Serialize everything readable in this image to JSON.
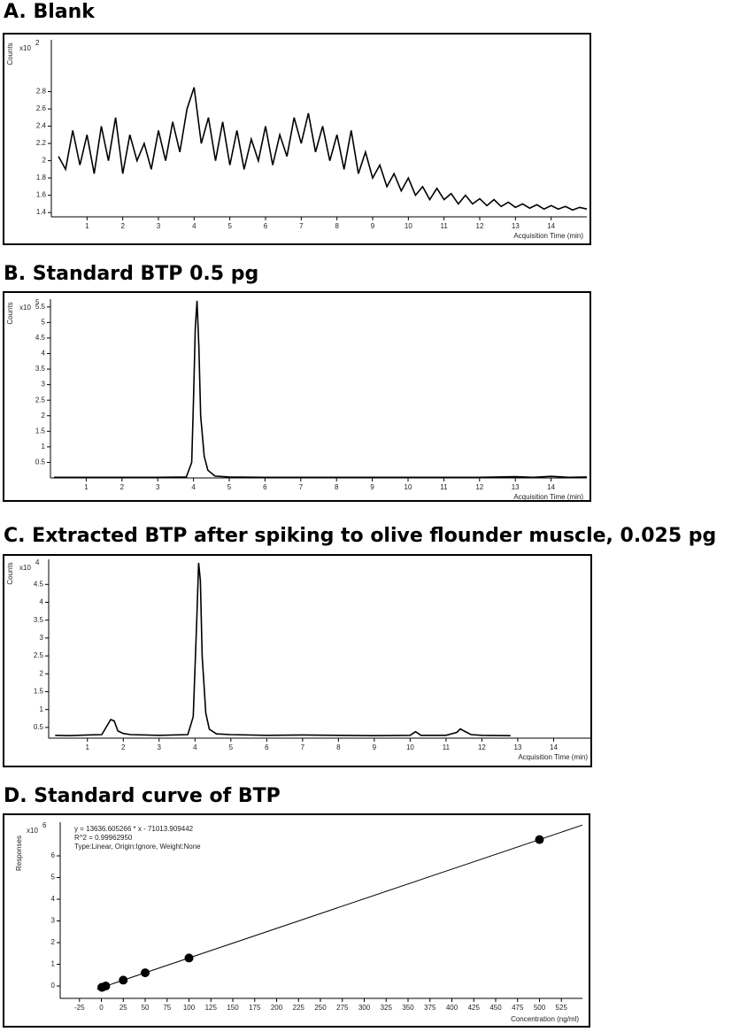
{
  "chart_data": [
    {
      "type": "line",
      "title": "A. Blank",
      "y_label": "Counts",
      "multiplier": "x10",
      "exponent": "2",
      "x_label": "Acquisition Time (min)",
      "color": "#000000",
      "xlim": [
        0,
        15
      ],
      "ylim": [
        1.35,
        3.4
      ],
      "xticks": [
        1,
        2,
        3,
        4,
        5,
        6,
        7,
        8,
        9,
        10,
        11,
        12,
        13,
        14
      ],
      "yticks": [
        1.4,
        1.6,
        1.8,
        2,
        2.2,
        2.4,
        2.6,
        2.8
      ],
      "x": [
        0.2,
        0.4,
        0.6,
        0.8,
        1.0,
        1.2,
        1.4,
        1.6,
        1.8,
        2.0,
        2.2,
        2.4,
        2.6,
        2.8,
        3.0,
        3.2,
        3.4,
        3.6,
        3.8,
        4.0,
        4.2,
        4.4,
        4.6,
        4.8,
        5.0,
        5.2,
        5.4,
        5.6,
        5.8,
        6.0,
        6.2,
        6.4,
        6.6,
        6.8,
        7.0,
        7.2,
        7.4,
        7.6,
        7.8,
        8.0,
        8.2,
        8.4,
        8.6,
        8.8,
        9.0,
        9.2,
        9.4,
        9.6,
        9.8,
        10.0,
        10.2,
        10.4,
        10.6,
        10.8,
        11.0,
        11.2,
        11.4,
        11.6,
        11.8,
        12.0,
        12.2,
        12.4,
        12.6,
        12.8,
        13.0,
        13.2,
        13.4,
        13.6,
        13.8,
        14.0,
        14.2,
        14.4,
        14.6,
        14.8,
        15.0
      ],
      "values": [
        2.05,
        1.9,
        2.35,
        1.95,
        2.3,
        1.85,
        2.4,
        2.0,
        2.5,
        1.85,
        2.3,
        2.0,
        2.2,
        1.9,
        2.35,
        2.0,
        2.45,
        2.1,
        2.6,
        2.85,
        2.2,
        2.5,
        2.0,
        2.45,
        1.95,
        2.35,
        1.9,
        2.25,
        2.0,
        2.4,
        1.95,
        2.3,
        2.05,
        2.5,
        2.2,
        2.55,
        2.1,
        2.4,
        2.0,
        2.3,
        1.9,
        2.35,
        1.85,
        2.1,
        1.8,
        1.95,
        1.7,
        1.85,
        1.65,
        1.8,
        1.6,
        1.7,
        1.55,
        1.68,
        1.55,
        1.62,
        1.5,
        1.6,
        1.5,
        1.56,
        1.48,
        1.55,
        1.47,
        1.52,
        1.46,
        1.5,
        1.45,
        1.49,
        1.44,
        1.48,
        1.44,
        1.47,
        1.43,
        1.46,
        1.44
      ]
    },
    {
      "type": "line",
      "title": "B. Standard BTP 0.5 pg",
      "y_label": "Counts",
      "multiplier": "x10",
      "exponent": "5",
      "x_label": "Acquisition Time (min)",
      "color": "#000000",
      "xlim": [
        0,
        15
      ],
      "ylim": [
        0,
        5.75
      ],
      "xticks": [
        1,
        2,
        3,
        4,
        5,
        6,
        7,
        8,
        9,
        10,
        11,
        12,
        13,
        14
      ],
      "yticks": [
        0.5,
        1,
        1.5,
        2,
        2.5,
        3,
        3.5,
        4,
        4.5,
        5,
        5.5
      ],
      "x": [
        0.1,
        1,
        2,
        3,
        3.8,
        3.95,
        4.0,
        4.05,
        4.1,
        4.15,
        4.2,
        4.3,
        4.4,
        4.6,
        5,
        6,
        8,
        10,
        12,
        13,
        13.5,
        14,
        14.5,
        15
      ],
      "values": [
        0.02,
        0.02,
        0.02,
        0.02,
        0.03,
        0.5,
        2.5,
        4.8,
        5.7,
        4.2,
        2.0,
        0.7,
        0.25,
        0.06,
        0.03,
        0.02,
        0.02,
        0.02,
        0.02,
        0.04,
        0.02,
        0.05,
        0.02,
        0.03
      ]
    },
    {
      "type": "line",
      "title": "C. Extracted BTP after spiking to olive flounder muscle, 0.025 pg",
      "y_label": "Counts",
      "multiplier": "x10",
      "exponent": "4",
      "x_label": "Acquisition Time (min)",
      "color": "#000000",
      "xlim": [
        -0.08,
        15.05
      ],
      "ylim": [
        0.2,
        5.2
      ],
      "xticks": [
        1,
        2,
        3,
        4,
        5,
        6,
        7,
        8,
        9,
        10,
        11,
        12,
        13,
        14
      ],
      "yticks": [
        0.5,
        1,
        1.5,
        2,
        2.5,
        3,
        3.5,
        4,
        4.5
      ],
      "x": [
        0.1,
        0.5,
        1.0,
        1.4,
        1.55,
        1.65,
        1.75,
        1.85,
        2.0,
        2.2,
        3.0,
        3.8,
        3.95,
        4.05,
        4.1,
        4.15,
        4.2,
        4.3,
        4.4,
        4.6,
        5.0,
        6,
        7,
        8,
        9,
        10.0,
        10.15,
        10.3,
        11.0,
        11.3,
        11.4,
        11.5,
        11.7,
        12,
        12.8
      ],
      "values": [
        0.28,
        0.27,
        0.29,
        0.3,
        0.55,
        0.72,
        0.68,
        0.4,
        0.33,
        0.3,
        0.28,
        0.3,
        0.8,
        3.5,
        5.1,
        4.6,
        2.5,
        0.9,
        0.45,
        0.32,
        0.3,
        0.28,
        0.29,
        0.28,
        0.27,
        0.28,
        0.38,
        0.28,
        0.28,
        0.36,
        0.46,
        0.4,
        0.3,
        0.28,
        0.27
      ]
    },
    {
      "type": "scatter",
      "title": "D. Standard curve of BTP",
      "y_label": "Responses",
      "multiplier": "x10",
      "exponent": "6",
      "x_label": "Concentration (ng/ml)",
      "color": "#000000",
      "annotations": [
        "y = 13636.605266 * x - 71013.909442",
        "R^2 = 0.99962950",
        "Type:Linear, Origin:Ignore, Weight:None"
      ],
      "xlim": [
        -47,
        549
      ],
      "ylim": [
        -0.57,
        7.55
      ],
      "xticks": [
        -25,
        0,
        25,
        50,
        75,
        100,
        125,
        150,
        175,
        200,
        225,
        250,
        275,
        300,
        325,
        350,
        375,
        400,
        425,
        450,
        475,
        500,
        525
      ],
      "yticks": [
        0,
        1,
        2,
        3,
        4,
        5,
        6
      ],
      "x": [
        0.5,
        1,
        5,
        25,
        50,
        100,
        500
      ],
      "values": [
        -0.06,
        -0.06,
        0,
        0.27,
        0.61,
        1.29,
        6.75
      ],
      "fit_line": {
        "x": [
          -5,
          549
        ],
        "y": [
          -0.14,
          7.42
        ]
      }
    }
  ]
}
